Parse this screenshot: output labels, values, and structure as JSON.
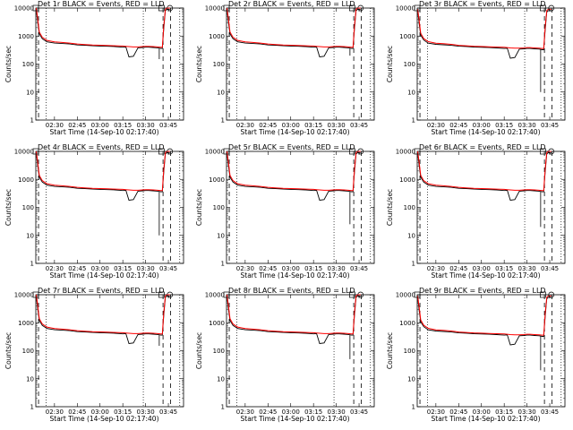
{
  "chart_data": {
    "type": "line",
    "yscale": "log",
    "ylim": [
      1,
      10000
    ],
    "y_ticks": [
      "1",
      "10",
      "100",
      "1000",
      "10000"
    ],
    "x_ticks": [
      "02:30",
      "02:45",
      "03:00",
      "03:15",
      "03:30",
      "03:45"
    ],
    "x_tick_minutes": [
      150,
      165,
      180,
      195,
      210,
      225
    ],
    "xlim_minutes": [
      137.7,
      235
    ],
    "xlabel": "Start Time (14-Sep-10 02:17:40)",
    "ylabel": "Counts/sec",
    "series_colors": {
      "events": "#000000",
      "lld": "#ff0000"
    },
    "vlines_dotted_minutes": [
      144.5,
      208.5,
      232.5
    ],
    "vlines_dashed_minutes": [
      139.5,
      221.5,
      226.5
    ],
    "markers": {
      "square_minutes": 220.5,
      "circle_minutes": 226
    },
    "x_minutes": [
      138,
      139,
      140,
      142,
      145,
      150,
      155,
      160,
      165,
      170,
      175,
      180,
      185,
      190,
      195,
      197,
      199,
      202,
      205,
      208,
      210,
      212,
      215,
      218,
      220,
      221,
      222,
      223,
      224,
      225,
      226
    ],
    "events_base": [
      9000,
      3000,
      1200,
      800,
      620,
      560,
      540,
      520,
      480,
      470,
      450,
      440,
      430,
      420,
      400,
      410,
      180,
      190,
      380,
      390,
      400,
      400,
      390,
      380,
      360,
      360,
      2000,
      8000,
      9000,
      9000,
      9000
    ],
    "lld_base": [
      10000,
      4000,
      1400,
      900,
      700,
      620,
      590,
      560,
      520,
      500,
      480,
      470,
      460,
      450,
      440,
      430,
      420,
      410,
      410,
      420,
      430,
      430,
      420,
      410,
      400,
      400,
      2500,
      9000,
      10000,
      10000,
      10000
    ],
    "panels": [
      {
        "title": "Det 1r BLACK = Events, RED = LLD",
        "scale": 1.0,
        "drop": {
          "minute": 219,
          "value": 150
        }
      },
      {
        "title": "Det 2r BLACK = Events, RED = LLD",
        "scale": 1.0,
        "drop": {
          "minute": 219,
          "value": 200
        }
      },
      {
        "title": "Det 3r BLACK = Events, RED = LLD",
        "scale": 0.9,
        "drop": {
          "minute": 219,
          "value": 10
        }
      },
      {
        "title": "Det 4r BLACK = Events, RED = LLD",
        "scale": 1.0,
        "drop": {
          "minute": 219,
          "value": 10
        }
      },
      {
        "title": "Det 5r BLACK = Events, RED = LLD",
        "scale": 1.0,
        "drop": {
          "minute": 219,
          "value": 25
        }
      },
      {
        "title": "Det 6r BLACK = Events, RED = LLD",
        "scale": 1.0,
        "drop": {
          "minute": 219,
          "value": 20
        }
      },
      {
        "title": "Det 7r BLACK = Events, RED = LLD",
        "scale": 1.0,
        "drop": {
          "minute": 219,
          "value": 150
        }
      },
      {
        "title": "Det 8r BLACK = Events, RED = LLD",
        "scale": 1.0,
        "drop": {
          "minute": 219,
          "value": 50
        }
      },
      {
        "title": "Det 9r BLACK = Events, RED = LLD",
        "scale": 0.9,
        "drop": {
          "minute": 219,
          "value": 20
        }
      }
    ]
  }
}
